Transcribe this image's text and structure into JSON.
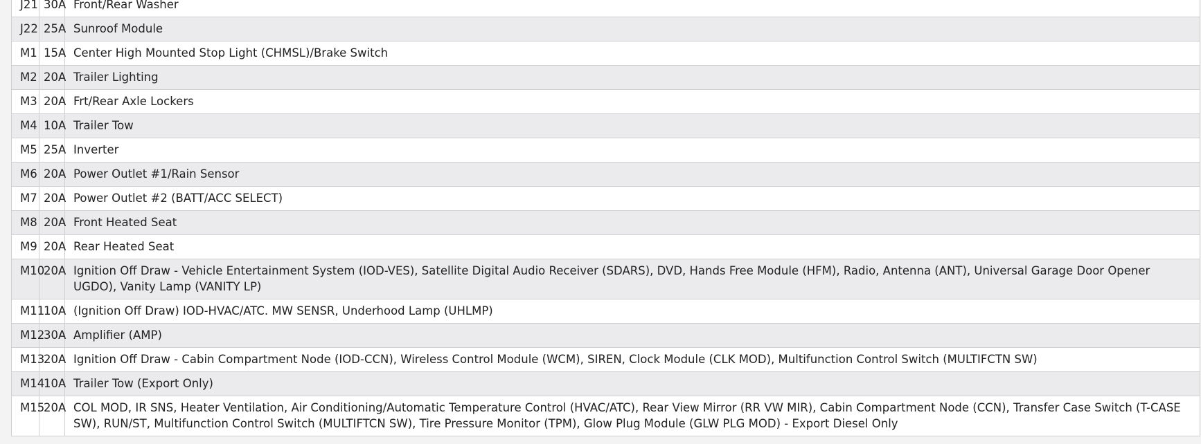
{
  "rows": [
    {
      "cavity": "J21",
      "rating": "30A",
      "description": "Front/Rear Washer"
    },
    {
      "cavity": "J22",
      "rating": "25A",
      "description": "Sunroof Module"
    },
    {
      "cavity": "M1",
      "rating": "15A",
      "description": "Center High Mounted Stop Light (CHMSL)/Brake Switch"
    },
    {
      "cavity": "M2",
      "rating": "20A",
      "description": "Trailer Lighting"
    },
    {
      "cavity": "M3",
      "rating": "20A",
      "description": "Frt/Rear Axle Lockers"
    },
    {
      "cavity": "M4",
      "rating": "10A",
      "description": "Trailer Tow"
    },
    {
      "cavity": "M5",
      "rating": "25A",
      "description": "Inverter"
    },
    {
      "cavity": "M6",
      "rating": "20A",
      "description": "Power Outlet #1/Rain Sensor"
    },
    {
      "cavity": "M7",
      "rating": "20A",
      "description": "Power Outlet #2 (BATT/ACC SELECT)"
    },
    {
      "cavity": "M8",
      "rating": "20A",
      "description": "Front Heated Seat"
    },
    {
      "cavity": "M9",
      "rating": "20A",
      "description": "Rear Heated Seat"
    },
    {
      "cavity": "M10",
      "rating": "20A",
      "description": "Ignition Off Draw - Vehicle Entertainment System (IOD-VES), Satellite Digital Audio Receiver (SDARS), DVD, Hands Free Module (HFM), Radio, Antenna (ANT), Universal Garage Door Opener UGDO), Vanity Lamp (VANITY LP)"
    },
    {
      "cavity": "M11",
      "rating": "10A",
      "description": "(Ignition Off Draw) IOD-HVAC/ATC. MW SENSR, Underhood Lamp (UHLMP)"
    },
    {
      "cavity": "M12",
      "rating": "30A",
      "description": "Amplifier (AMP)"
    },
    {
      "cavity": "M13",
      "rating": "20A",
      "description": "Ignition Off Draw - Cabin Compartment Node (IOD-CCN), Wireless Control Module (WCM), SIREN, Clock Module (CLK MOD), Multifunction Control Switch (MULTIFCTN SW)"
    },
    {
      "cavity": "M14",
      "rating": "10A",
      "description": "Trailer Tow (Export Only)"
    },
    {
      "cavity": "M15",
      "rating": "20A",
      "description": "COL MOD, IR SNS, Heater Ventilation, Air Conditioning/Automatic Temperature Control (HVAC/ATC), Rear View Mirror (RR VW MIR), Cabin Compartment Node (CCN), Transfer Case Switch (T-CASE SW), RUN/ST, Multifunction Control Switch (MULTIFTCN SW), Tire Pressure Monitor (TPM), Glow Plug Module (GLW PLG MOD) - Export Diesel Only"
    }
  ]
}
